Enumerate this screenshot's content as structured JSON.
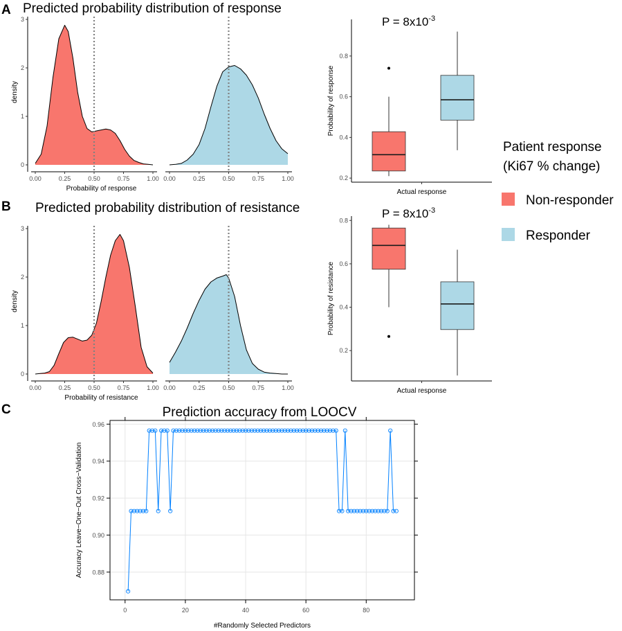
{
  "colors": {
    "non_responder": "#F8766D",
    "responder": "#ADD8E6",
    "accuracy_line": "#0080FF",
    "vline": "#808080"
  },
  "panels": {
    "a": "A",
    "b": "B",
    "c": "C"
  },
  "legend": {
    "title_line1": "Patient response",
    "title_line2": "(Ki67 % change)",
    "items": [
      "Non-responder",
      "Responder"
    ]
  },
  "chart_data": [
    {
      "id": "A_density",
      "type": "area",
      "title": "Predicted probability distribution of response",
      "xlabel": "Probability of response",
      "ylabel": "density",
      "xlim": [
        0,
        1
      ],
      "ylim": [
        0,
        3
      ],
      "x_ticks": [
        "0.00",
        "0.25",
        "0.50",
        "0.75",
        "1.00"
      ],
      "y_ticks": [
        "0",
        "1",
        "2",
        "3"
      ],
      "vline": 0.5,
      "series": [
        {
          "name": "Non-responder",
          "x": [
            0.0,
            0.05,
            0.1,
            0.15,
            0.2,
            0.25,
            0.28,
            0.32,
            0.36,
            0.4,
            0.44,
            0.48,
            0.52,
            0.56,
            0.6,
            0.64,
            0.68,
            0.72,
            0.76,
            0.8,
            0.84,
            0.88,
            0.92,
            0.96,
            1.0
          ],
          "y": [
            0.03,
            0.22,
            0.8,
            1.8,
            2.6,
            2.88,
            2.75,
            2.2,
            1.5,
            1.0,
            0.75,
            0.68,
            0.7,
            0.72,
            0.74,
            0.72,
            0.65,
            0.5,
            0.32,
            0.18,
            0.09,
            0.05,
            0.02,
            0.01,
            0.0
          ]
        },
        {
          "name": "Responder",
          "x": [
            0.0,
            0.05,
            0.1,
            0.15,
            0.2,
            0.25,
            0.3,
            0.35,
            0.4,
            0.45,
            0.5,
            0.55,
            0.6,
            0.65,
            0.7,
            0.75,
            0.8,
            0.85,
            0.9,
            0.95,
            1.0
          ],
          "y": [
            0.0,
            0.01,
            0.03,
            0.1,
            0.22,
            0.42,
            0.75,
            1.2,
            1.62,
            1.92,
            2.02,
            2.05,
            1.98,
            1.85,
            1.65,
            1.38,
            1.05,
            0.75,
            0.5,
            0.33,
            0.23
          ]
        }
      ]
    },
    {
      "id": "A_box",
      "type": "box",
      "title": "P = 8x10",
      "title_sup": "-3",
      "xlabel": "Actual response",
      "ylabel": "Probability of response",
      "ylim": [
        0.18,
        0.98
      ],
      "y_ticks": [
        "0.2",
        "0.4",
        "0.6",
        "0.8"
      ],
      "series": [
        {
          "name": "Non-responder",
          "whisker_low": 0.21,
          "q1": 0.235,
          "median": 0.315,
          "q3": 0.428,
          "whisker_high": 0.6,
          "outliers": [
            0.74
          ]
        },
        {
          "name": "Responder",
          "whisker_low": 0.337,
          "q1": 0.485,
          "median": 0.585,
          "q3": 0.705,
          "whisker_high": 0.92,
          "outliers": []
        }
      ]
    },
    {
      "id": "B_density",
      "type": "area",
      "title": "Predicted probability distribution of resistance",
      "xlabel": "Probability of resistance",
      "ylabel": "density",
      "xlim": [
        0,
        1
      ],
      "ylim": [
        0,
        3
      ],
      "x_ticks": [
        "0.00",
        "0.25",
        "0.50",
        "0.75",
        "1.00"
      ],
      "y_ticks": [
        "0",
        "1",
        "2",
        "3"
      ],
      "vline": 0.5,
      "series": [
        {
          "name": "Non-responder",
          "x": [
            0.0,
            0.04,
            0.08,
            0.12,
            0.16,
            0.2,
            0.24,
            0.28,
            0.32,
            0.36,
            0.4,
            0.44,
            0.48,
            0.52,
            0.56,
            0.6,
            0.64,
            0.68,
            0.72,
            0.75,
            0.8,
            0.85,
            0.9,
            0.95,
            1.0
          ],
          "y": [
            0.0,
            0.01,
            0.02,
            0.05,
            0.18,
            0.42,
            0.65,
            0.75,
            0.76,
            0.72,
            0.68,
            0.7,
            0.8,
            1.05,
            1.5,
            2.0,
            2.45,
            2.75,
            2.88,
            2.75,
            2.2,
            1.4,
            0.55,
            0.15,
            0.02
          ]
        },
        {
          "name": "Responder",
          "x": [
            0.0,
            0.05,
            0.1,
            0.15,
            0.2,
            0.25,
            0.3,
            0.35,
            0.4,
            0.45,
            0.48,
            0.5,
            0.55,
            0.6,
            0.65,
            0.7,
            0.75,
            0.8,
            0.85,
            0.9,
            0.95,
            1.0
          ],
          "y": [
            0.24,
            0.45,
            0.68,
            0.95,
            1.25,
            1.52,
            1.75,
            1.9,
            1.98,
            2.02,
            2.05,
            1.98,
            1.6,
            1.0,
            0.5,
            0.22,
            0.1,
            0.04,
            0.02,
            0.01,
            0.0,
            0.0
          ]
        }
      ]
    },
    {
      "id": "B_box",
      "type": "box",
      "title": "P = 8x10",
      "title_sup": "-3",
      "xlabel": "Actual response",
      "ylabel": "Probability of resistance",
      "ylim": [
        0.06,
        0.82
      ],
      "y_ticks": [
        "0.2",
        "0.4",
        "0.6",
        "0.8"
      ],
      "series": [
        {
          "name": "Non-responder",
          "whisker_low": 0.4,
          "q1": 0.575,
          "median": 0.685,
          "q3": 0.765,
          "whisker_high": 0.78,
          "outliers": [
            0.265
          ]
        },
        {
          "name": "Responder",
          "whisker_low": 0.085,
          "q1": 0.297,
          "median": 0.415,
          "q3": 0.517,
          "whisker_high": 0.665,
          "outliers": []
        }
      ]
    },
    {
      "id": "C_accuracy",
      "type": "line",
      "title": "Prediction accuracy from LOOCV",
      "xlabel": "#Randomly Selected Predictors",
      "ylabel": "Accuracy Leave−One−Out Cross−Validation",
      "xlim": [
        -5,
        96
      ],
      "ylim": [
        0.865,
        0.962
      ],
      "x_ticks": [
        "0",
        "20",
        "40",
        "60",
        "80"
      ],
      "y_ticks": [
        "0.88",
        "0.90",
        "0.92",
        "0.94",
        "0.96"
      ],
      "x": [
        1,
        2,
        3,
        4,
        5,
        6,
        7,
        8,
        9,
        10,
        11,
        12,
        13,
        14,
        15,
        16,
        17,
        18,
        19,
        20,
        21,
        22,
        23,
        24,
        25,
        26,
        27,
        28,
        29,
        30,
        31,
        32,
        33,
        34,
        35,
        36,
        37,
        38,
        39,
        40,
        41,
        42,
        43,
        44,
        45,
        46,
        47,
        48,
        49,
        50,
        51,
        52,
        53,
        54,
        55,
        56,
        57,
        58,
        59,
        60,
        61,
        62,
        63,
        64,
        65,
        66,
        67,
        68,
        69,
        70,
        71,
        72,
        73,
        74,
        75,
        76,
        77,
        78,
        79,
        80,
        81,
        82,
        83,
        84,
        85,
        86,
        87,
        88,
        89,
        90
      ],
      "y": [
        0.8696,
        0.913,
        0.913,
        0.913,
        0.913,
        0.913,
        0.913,
        0.9565,
        0.9565,
        0.9565,
        0.913,
        0.9565,
        0.9565,
        0.9565,
        0.913,
        0.9565,
        0.9565,
        0.9565,
        0.9565,
        0.9565,
        0.9565,
        0.9565,
        0.9565,
        0.9565,
        0.9565,
        0.9565,
        0.9565,
        0.9565,
        0.9565,
        0.9565,
        0.9565,
        0.9565,
        0.9565,
        0.9565,
        0.9565,
        0.9565,
        0.9565,
        0.9565,
        0.9565,
        0.9565,
        0.9565,
        0.9565,
        0.9565,
        0.9565,
        0.9565,
        0.9565,
        0.9565,
        0.9565,
        0.9565,
        0.9565,
        0.9565,
        0.9565,
        0.9565,
        0.9565,
        0.9565,
        0.9565,
        0.9565,
        0.9565,
        0.9565,
        0.9565,
        0.9565,
        0.9565,
        0.9565,
        0.9565,
        0.9565,
        0.9565,
        0.9565,
        0.9565,
        0.9565,
        0.9565,
        0.913,
        0.913,
        0.9565,
        0.913,
        0.913,
        0.913,
        0.913,
        0.913,
        0.913,
        0.913,
        0.913,
        0.913,
        0.913,
        0.913,
        0.913,
        0.913,
        0.913,
        0.9565,
        0.913,
        0.913
      ]
    }
  ]
}
